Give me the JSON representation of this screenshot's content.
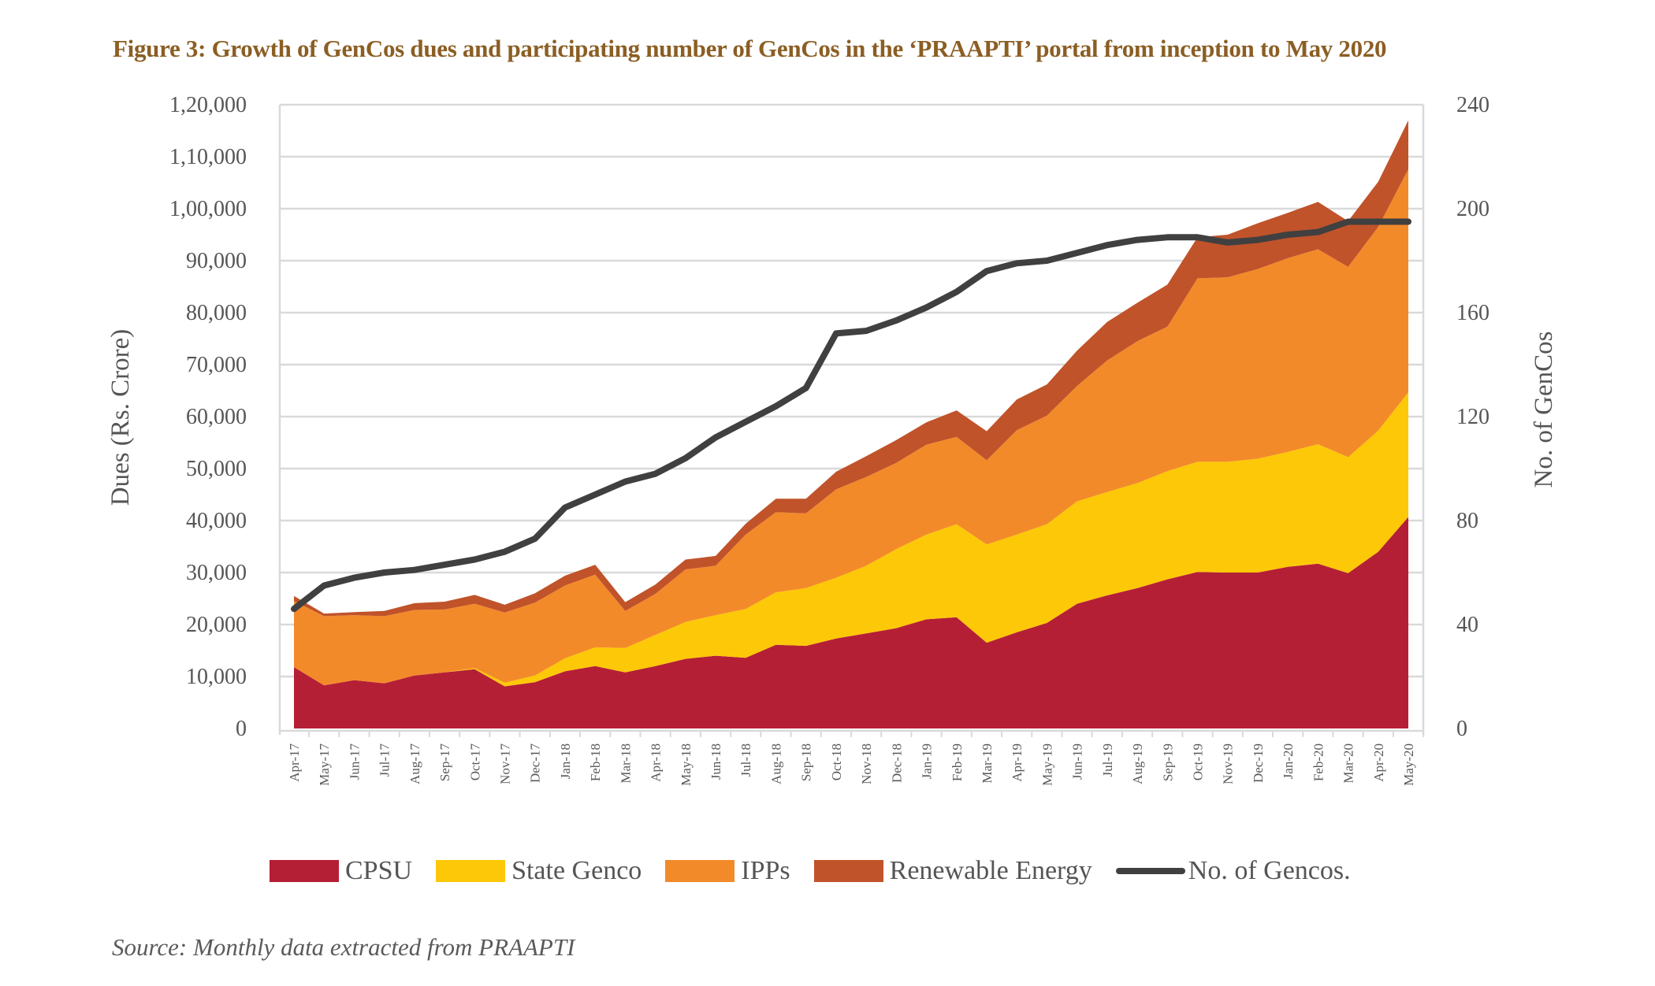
{
  "title": "Figure 3: Growth of GenCos dues and participating number of GenCos in the ‘PRAAPTI’ portal from inception to May 2020",
  "source": "Source: Monthly data extracted from PRAAPTI",
  "chart_data": {
    "type": "area",
    "stacked": true,
    "title": "Figure 3: Growth of GenCos dues and participating number of GenCos in the ‘PRAAPTI’ portal from inception to May 2020",
    "xlabel": "",
    "ylabel": "Dues (Rs. Crore)",
    "y2label": "No. of GenCos",
    "ylim": [
      0,
      120000
    ],
    "y2lim": [
      0,
      240
    ],
    "yticks": [
      0,
      10000,
      20000,
      30000,
      40000,
      50000,
      60000,
      70000,
      80000,
      90000,
      100000,
      110000,
      120000
    ],
    "ytick_labels": [
      "0",
      "10,000",
      "20,000",
      "30,000",
      "40,000",
      "50,000",
      "60,000",
      "70,000",
      "80,000",
      "90,000",
      "1,00,000",
      "1,10,000",
      "1,20,000"
    ],
    "y2ticks": [
      0,
      40,
      80,
      120,
      160,
      200,
      240
    ],
    "y2tick_labels": [
      "0",
      "40",
      "80",
      "120",
      "160",
      "200",
      "240"
    ],
    "grid": true,
    "legend_position": "bottom",
    "categories": [
      "Apr-17",
      "May-17",
      "Jun-17",
      "Jul-17",
      "Aug-17",
      "Sep-17",
      "Oct-17",
      "Nov-17",
      "Dec-17",
      "Jan-18",
      "Feb-18",
      "Mar-18",
      "Apr-18",
      "May-18",
      "Jun-18",
      "Jul-18",
      "Aug-18",
      "Sep-18",
      "Oct-18",
      "Nov-18",
      "Dec-18",
      "Jan-19",
      "Feb-19",
      "Mar-19",
      "Apr-19",
      "May-19",
      "Jun-19",
      "Jul-19",
      "Aug-19",
      "Sep-19",
      "Oct-19",
      "Nov-19",
      "Dec-19",
      "Jan-20",
      "Feb-20",
      "Mar-20",
      "Apr-20",
      "May-20"
    ],
    "series": [
      {
        "name": "CPSU",
        "type": "area",
        "axis": "left",
        "color": "#B51F36",
        "values": [
          11800,
          8300,
          9300,
          8700,
          10200,
          10800,
          11400,
          8100,
          8900,
          11000,
          12000,
          10800,
          12000,
          13400,
          14000,
          13600,
          16100,
          15900,
          17300,
          18300,
          19300,
          21000,
          21400,
          16500,
          18500,
          20300,
          24000,
          25600,
          27000,
          28700,
          30100,
          30000,
          30000,
          31100,
          31700,
          29900,
          34000,
          40700
        ]
      },
      {
        "name": "State Genco",
        "type": "area",
        "axis": "left",
        "color": "#FDC807",
        "values": [
          0,
          0,
          0,
          0,
          0,
          0,
          200,
          700,
          1300,
          2500,
          3600,
          4700,
          6000,
          7100,
          7800,
          9400,
          10100,
          11100,
          11700,
          13000,
          15200,
          16300,
          17900,
          18900,
          18800,
          19000,
          19700,
          19900,
          20200,
          20800,
          21200,
          21300,
          21900,
          22100,
          23000,
          22300,
          23300,
          24000
        ]
      },
      {
        "name": "IPPs",
        "type": "area",
        "axis": "left",
        "color": "#F38A2A",
        "values": [
          12700,
          13300,
          12500,
          12900,
          12600,
          12100,
          12400,
          13500,
          14000,
          14000,
          14000,
          7100,
          7900,
          10100,
          9500,
          14300,
          15400,
          14400,
          17000,
          17100,
          16600,
          17300,
          16800,
          16200,
          20100,
          20900,
          22200,
          25300,
          27300,
          27800,
          35300,
          35500,
          36500,
          37300,
          37500,
          36600,
          39200,
          42900
        ]
      },
      {
        "name": "Renewable Energy",
        "type": "area",
        "axis": "left",
        "color": "#C0532A",
        "values": [
          1000,
          500,
          600,
          1000,
          1300,
          1500,
          1700,
          1500,
          1800,
          1900,
          1900,
          1700,
          1800,
          1900,
          1900,
          2100,
          2600,
          2800,
          3400,
          4000,
          4400,
          4300,
          5100,
          5600,
          5900,
          6000,
          6800,
          7400,
          7400,
          8100,
          7900,
          8200,
          8800,
          8700,
          9100,
          8800,
          8700,
          9400
        ]
      },
      {
        "name": "No. of Gencos.",
        "type": "line",
        "axis": "right",
        "color": "#404040",
        "values": [
          46,
          55,
          58,
          60,
          61,
          63,
          65,
          68,
          73,
          85,
          90,
          95,
          98,
          104,
          112,
          118,
          124,
          131,
          152,
          153,
          157,
          162,
          168,
          176,
          179,
          180,
          183,
          186,
          188,
          189,
          189,
          187,
          188,
          190,
          191,
          195,
          195,
          195
        ]
      }
    ]
  },
  "legend": [
    {
      "label": "CPSU",
      "kind": "area",
      "color": "#B51F36"
    },
    {
      "label": "State Genco",
      "kind": "area",
      "color": "#FDC807"
    },
    {
      "label": "IPPs",
      "kind": "area",
      "color": "#F38A2A"
    },
    {
      "label": "Renewable Energy",
      "kind": "area",
      "color": "#C0532A"
    },
    {
      "label": "No. of Gencos.",
      "kind": "line",
      "color": "#404040"
    }
  ]
}
